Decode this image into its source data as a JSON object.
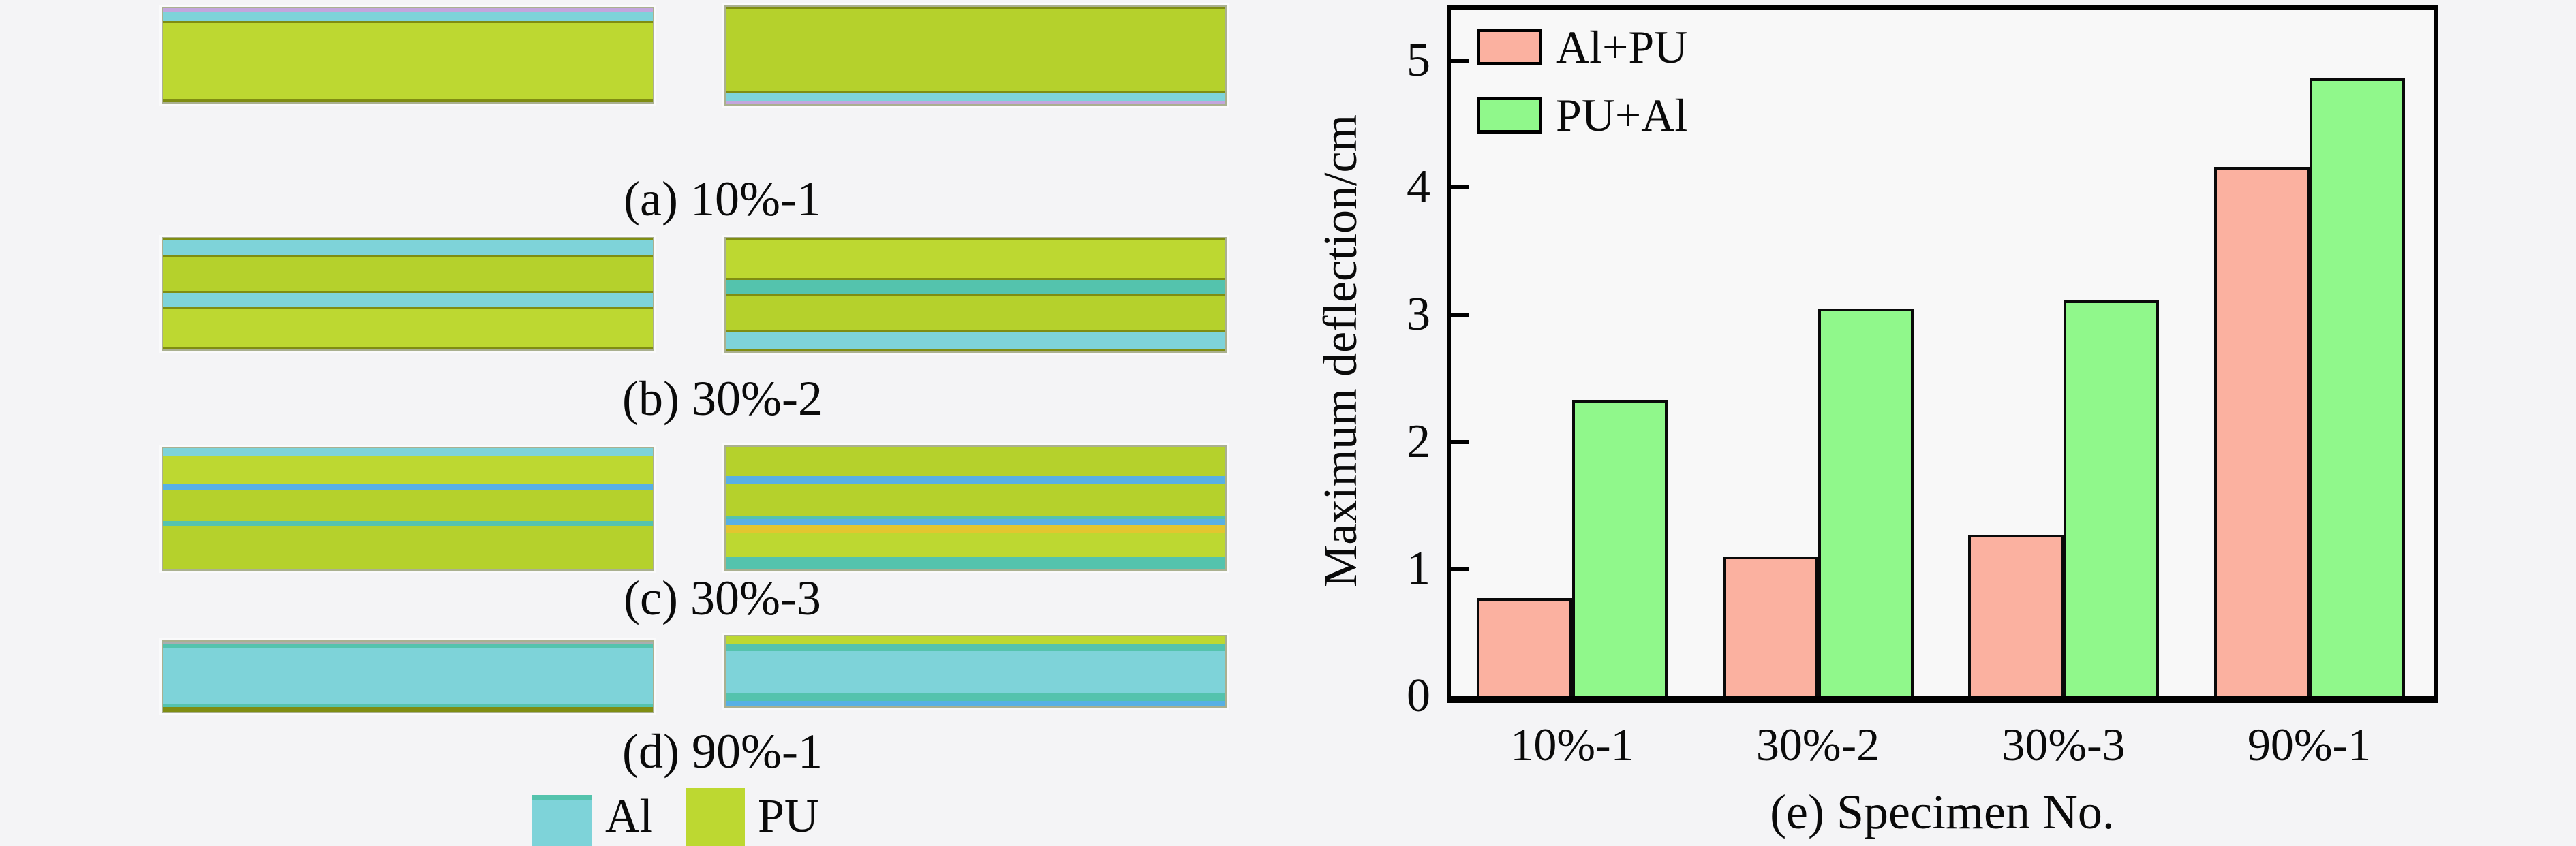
{
  "figure": {
    "background": "#f4f4f6",
    "plot_background": "#f8f8f8"
  },
  "specimens": {
    "palette": {
      "pu": "#bdd831",
      "pu_speckle": "#b5d12c",
      "al": "#7ed3d9",
      "olive": "#7f8d12",
      "lavender": "#c3a6dd",
      "teal": "#54c3ad",
      "blue": "#58b0e4",
      "amber": "#e3c62f",
      "gray": "#a9adb0"
    },
    "rows": [
      {
        "label": "(a) 10%-1",
        "left_layers": [
          {
            "m": "lavender",
            "h": 4
          },
          {
            "m": "al",
            "h": 10
          },
          {
            "m": "olive",
            "h": 2
          },
          {
            "m": "pu",
            "h": 81
          },
          {
            "m": "olive",
            "h": 3
          }
        ],
        "right_layers": [
          {
            "m": "olive",
            "h": 2
          },
          {
            "m": "pu_speckle",
            "h": 84
          },
          {
            "m": "olive",
            "h": 3
          },
          {
            "m": "al",
            "h": 8
          },
          {
            "m": "lavender",
            "h": 3
          }
        ]
      },
      {
        "label": "(b) 30%-2",
        "left_layers": [
          {
            "m": "olive",
            "h": 2
          },
          {
            "m": "al",
            "h": 13
          },
          {
            "m": "olive",
            "h": 2
          },
          {
            "m": "pu_speckle",
            "h": 30
          },
          {
            "m": "olive",
            "h": 2
          },
          {
            "m": "al",
            "h": 13
          },
          {
            "m": "olive",
            "h": 2
          },
          {
            "m": "pu",
            "h": 34
          },
          {
            "m": "olive",
            "h": 2
          }
        ],
        "right_layers": [
          {
            "m": "olive",
            "h": 2
          },
          {
            "m": "pu",
            "h": 33
          },
          {
            "m": "olive",
            "h": 2
          },
          {
            "m": "teal",
            "h": 12
          },
          {
            "m": "olive",
            "h": 2
          },
          {
            "m": "pu_speckle",
            "h": 30
          },
          {
            "m": "olive",
            "h": 2
          },
          {
            "m": "al",
            "h": 15
          },
          {
            "m": "olive",
            "h": 2
          }
        ]
      },
      {
        "label": "(c) 30%-3",
        "left_layers": [
          {
            "m": "al",
            "h": 7
          },
          {
            "m": "pu",
            "h": 23
          },
          {
            "m": "blue",
            "h": 4
          },
          {
            "m": "pu_speckle",
            "h": 26
          },
          {
            "m": "teal",
            "h": 4
          },
          {
            "m": "pu_speckle",
            "h": 36
          }
        ],
        "right_layers": [
          {
            "m": "pu_speckle",
            "h": 24
          },
          {
            "m": "blue",
            "h": 6
          },
          {
            "m": "pu_speckle",
            "h": 26
          },
          {
            "m": "teal",
            "h": 3
          },
          {
            "m": "blue",
            "h": 5
          },
          {
            "m": "amber",
            "h": 6
          },
          {
            "m": "pu",
            "h": 20
          },
          {
            "m": "teal",
            "h": 10
          }
        ]
      },
      {
        "label": "(d) 90%-1",
        "left_layers": [
          {
            "m": "gray",
            "h": 3
          },
          {
            "m": "teal",
            "h": 7
          },
          {
            "m": "al",
            "h": 78
          },
          {
            "m": "teal",
            "h": 5
          },
          {
            "m": "olive",
            "h": 7
          }
        ],
        "right_layers": [
          {
            "m": "pu",
            "h": 12
          },
          {
            "m": "teal",
            "h": 8
          },
          {
            "m": "al",
            "h": 62
          },
          {
            "m": "teal",
            "h": 10
          },
          {
            "m": "blue",
            "h": 8
          }
        ]
      }
    ],
    "legend": {
      "al_label": "Al",
      "pu_label": "PU",
      "al_color": "#7ed3d9",
      "pu_color": "#bdd831"
    }
  },
  "chart_data": {
    "type": "bar",
    "categories": [
      "10%-1",
      "30%-2",
      "30%-3",
      "90%-1"
    ],
    "series": [
      {
        "name": "Al+PU",
        "color": "#fbb1a0",
        "values": [
          0.77,
          1.1,
          1.27,
          4.16
        ]
      },
      {
        "name": "PU+Al",
        "color": "#90f88b",
        "values": [
          2.33,
          3.05,
          3.11,
          4.86
        ]
      }
    ],
    "title": "",
    "xlabel": "(e) Specimen No.",
    "ylabel": "Maximum deflection/cm",
    "ylim": [
      0,
      5.4
    ],
    "yticks": [
      0,
      1,
      2,
      3,
      4,
      5
    ],
    "legend_position": "upper-left",
    "grid": false
  }
}
